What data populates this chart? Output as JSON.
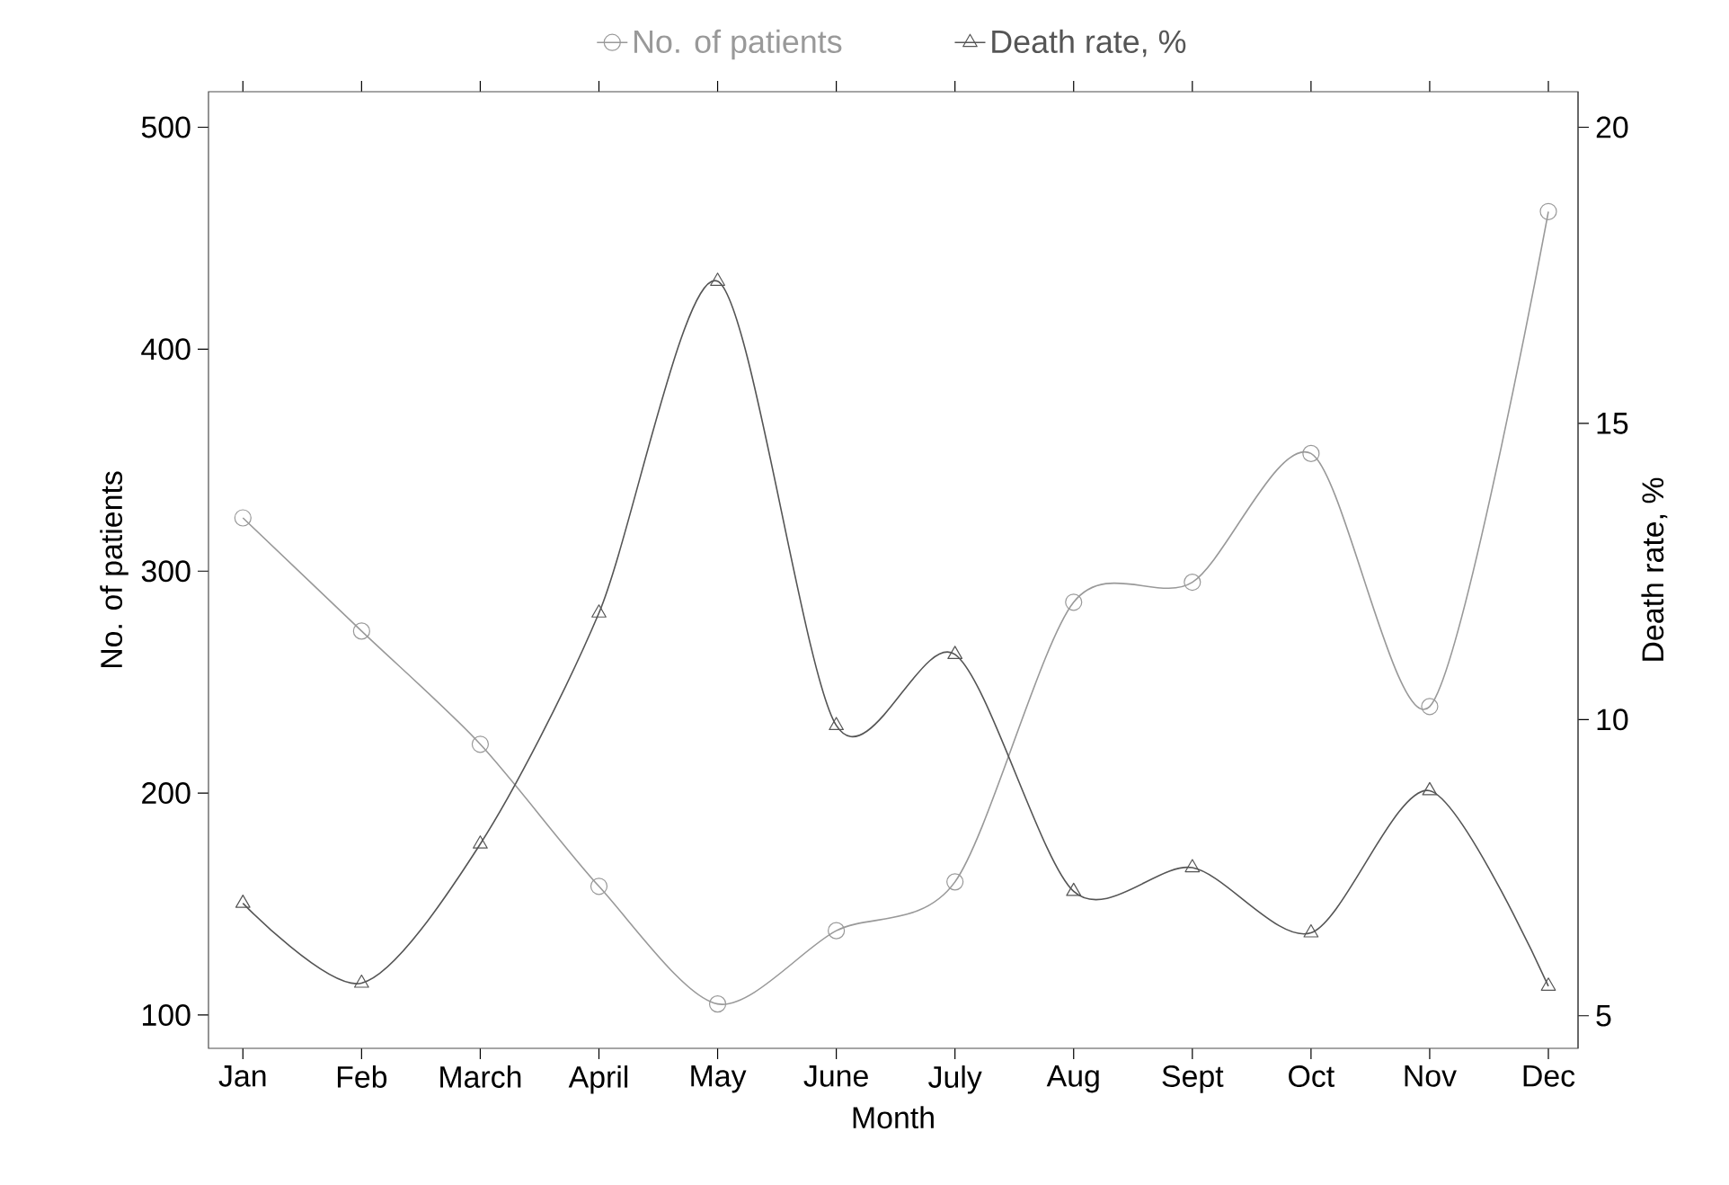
{
  "chart_data": {
    "type": "line",
    "xlabel": "Month",
    "ylabel": "No. of patients",
    "y2label": "Death rate, %",
    "categories": [
      "Jan",
      "Feb",
      "March",
      "April",
      "May",
      "June",
      "July",
      "Aug",
      "Sept",
      "Oct",
      "Nov",
      "Dec"
    ],
    "series": [
      {
        "name": "No. of patients",
        "color": "#999999",
        "marker": "circle",
        "values": [
          324,
          273,
          222,
          158,
          105,
          138,
          160,
          286,
          295,
          353,
          239,
          462
        ]
      },
      {
        "name": "Death rate, %",
        "color": "#555555",
        "marker": "triangle",
        "axis": "y2",
        "values": [
          6.9,
          5.55,
          7.9,
          11.8,
          17.4,
          9.9,
          11.1,
          7.1,
          7.5,
          6.4,
          8.8,
          5.5
        ]
      }
    ],
    "ylim": [
      85,
      516
    ],
    "yticks": [
      100,
      200,
      300,
      400,
      500
    ],
    "y2lim": [
      4.45,
      20.6
    ],
    "y2ticks": [
      5,
      10,
      15,
      20
    ],
    "legend": "top",
    "grid": false,
    "line_style": "solid"
  }
}
